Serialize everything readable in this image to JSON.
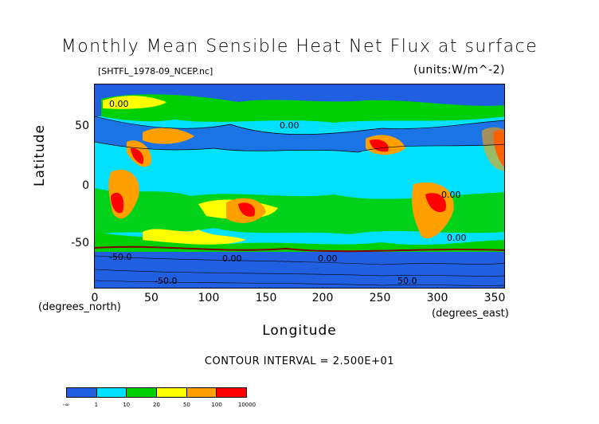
{
  "title": "Monthly Mean Sensible Heat Net Flux at surface",
  "file_label": "[SHTFL_1978-09_NCEP.nc]",
  "units_label": "(units:W/m^-2)",
  "axes": {
    "y_label": "Latitude",
    "y_ticks": [
      "50",
      "0",
      "-50"
    ],
    "x_label": "Longitude",
    "x_ticks": [
      "0",
      "50",
      "100",
      "150",
      "200",
      "250",
      "300",
      "350"
    ],
    "x_unit_left": "(degrees_north)",
    "x_unit_right": "(degrees_east)",
    "x_range": [
      0,
      360
    ],
    "y_range": [
      -90,
      90
    ]
  },
  "contour_interval": "CONTOUR INTERVAL = 2.500E+01",
  "contour_labels": [
    "0.00",
    "0.00",
    "0.00",
    "0.00",
    "0.00",
    "0.00",
    "-50.0",
    "50.0",
    "-50.0"
  ],
  "colorbar": {
    "colors": [
      "#2060e0",
      "#00e0ff",
      "#00d000",
      "#ffff00",
      "#ffa000",
      "#ff0000"
    ],
    "labels": [
      "-∞",
      "1",
      "10",
      "20",
      "50",
      "100",
      "10000"
    ]
  },
  "palette": {
    "ocean_low": "#2060e0",
    "cyan": "#00e0ff",
    "green": "#00d000",
    "yellow": "#ffff00",
    "orange": "#ffa000",
    "red": "#ff0000"
  }
}
